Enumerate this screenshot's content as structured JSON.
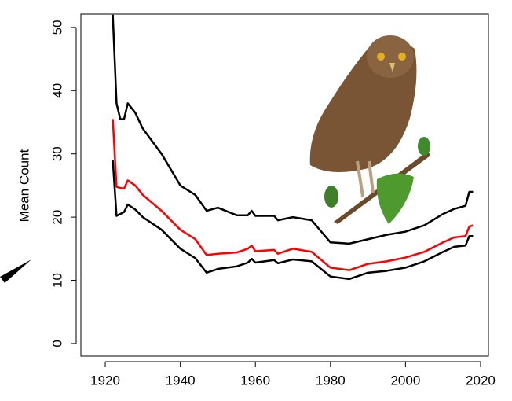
{
  "chart_data": {
    "type": "line",
    "y_label": "Mean Count",
    "x": [
      1922,
      1923,
      1924,
      1925,
      1926,
      1928,
      1930,
      1935,
      1940,
      1944,
      1947,
      1950,
      1955,
      1958,
      1959,
      1960,
      1965,
      1966,
      1970,
      1975,
      1980,
      1985,
      1990,
      1995,
      2000,
      2005,
      2010,
      2013,
      2016,
      2017,
      2018
    ],
    "series": [
      {
        "color": "#000000",
        "values": [
          52,
          38,
          35.5,
          35.5,
          38,
          36.5,
          34,
          30,
          25,
          23.5,
          21,
          21.5,
          20.3,
          20.3,
          21,
          20.2,
          20.2,
          19.5,
          20,
          19.5,
          16,
          15.8,
          16.5,
          17.2,
          17.7,
          18.7,
          20.5,
          21.3,
          21.8,
          24,
          24
        ]
      },
      {
        "color": "#ff0000",
        "values": [
          35.5,
          24.8,
          24.6,
          24.5,
          25.8,
          25,
          23.5,
          21,
          18,
          16.5,
          14,
          14.2,
          14.4,
          15,
          15.5,
          14.6,
          14.8,
          14.2,
          15,
          14.5,
          12,
          11.6,
          12.6,
          13,
          13.6,
          14.5,
          16,
          16.8,
          17,
          18.5,
          18.7
        ]
      },
      {
        "color": "#000000",
        "values": [
          29,
          20.2,
          20.5,
          20.8,
          22,
          21.2,
          20,
          18,
          15,
          13.5,
          11.2,
          11.8,
          12.2,
          12.8,
          13.4,
          12.8,
          13.2,
          12.7,
          13.3,
          13,
          10.6,
          10.2,
          11.2,
          11.5,
          12,
          13,
          14.5,
          15.3,
          15.5,
          17,
          17
        ]
      }
    ],
    "xlim": [
      1913.5,
      2022.1
    ],
    "ylim": [
      -2,
      52.1
    ],
    "xticks": [
      1920,
      1940,
      1960,
      1980,
      2000,
      2020
    ],
    "yticks": [
      0,
      10,
      20,
      30,
      40,
      50
    ]
  }
}
